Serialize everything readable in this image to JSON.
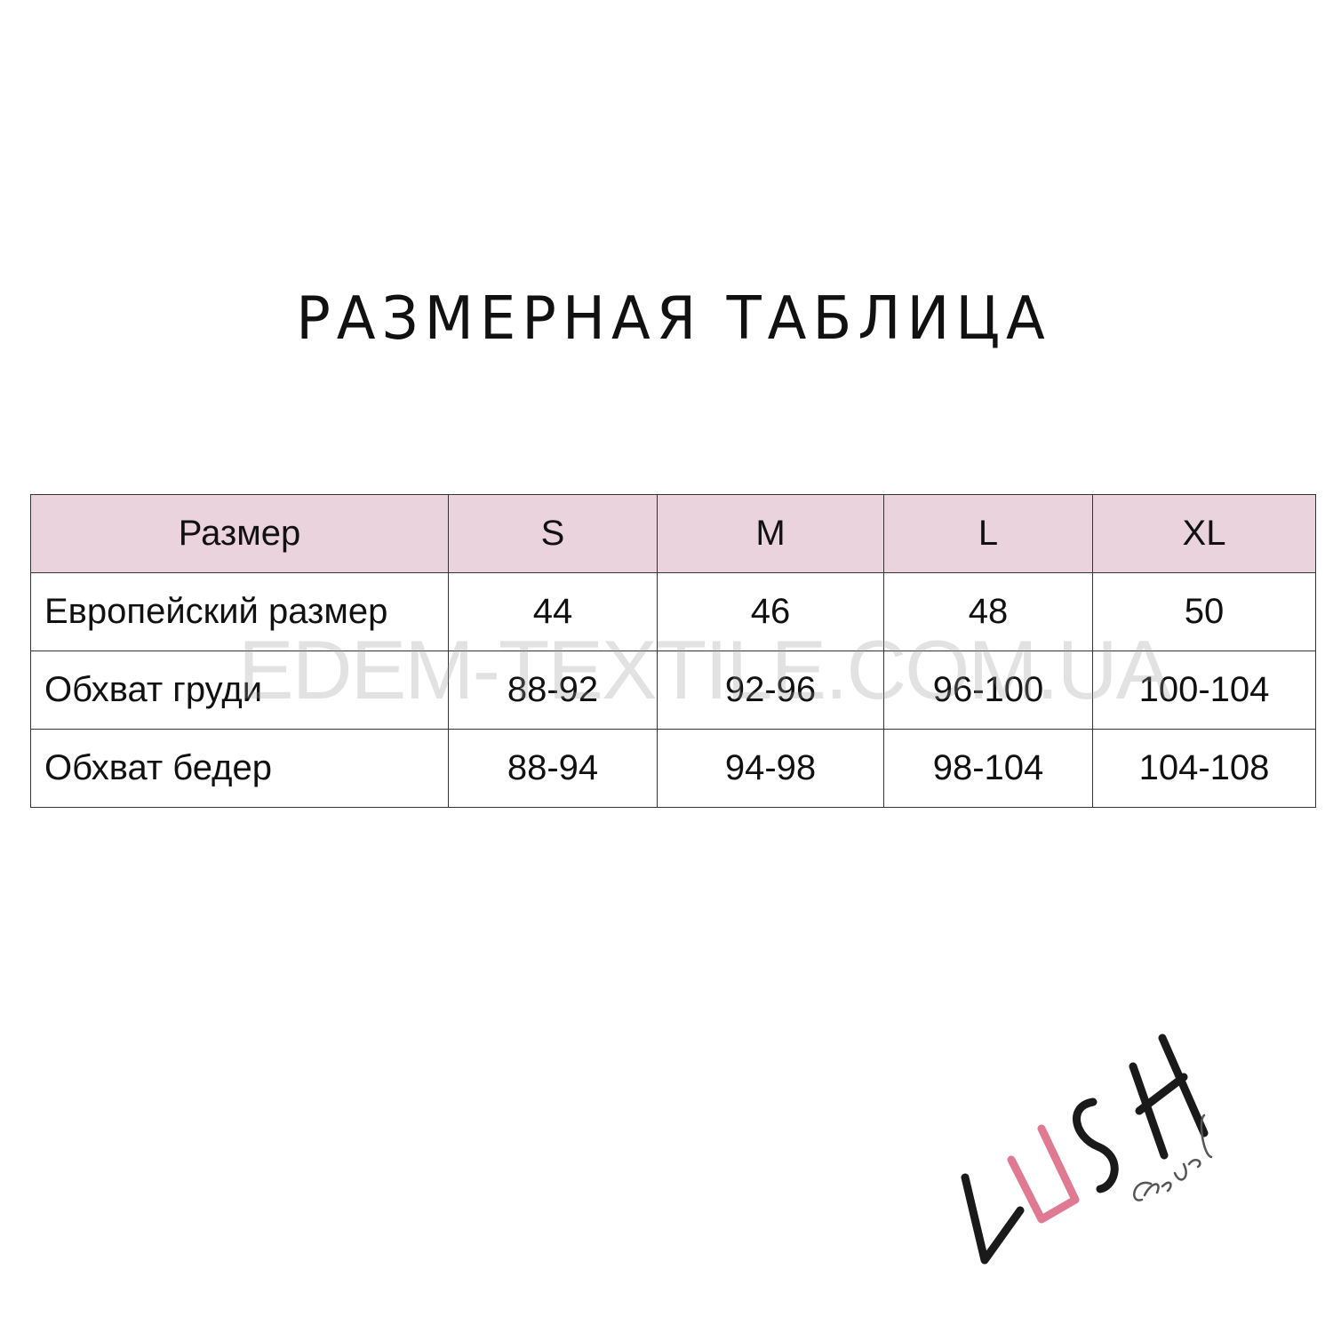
{
  "title": "РАЗМЕРНАЯ ТАБЛИЦА",
  "table": {
    "header": [
      "Размер",
      "S",
      "M",
      "L",
      "XL"
    ],
    "rows": [
      [
        "Европейский размер",
        "44",
        "46",
        "48",
        "50"
      ],
      [
        "Обхват груди",
        "88-92",
        "92-96",
        "96-100",
        "100-104"
      ],
      [
        "Обхват бедер",
        "88-94",
        "94-98",
        "98-104",
        "104-108"
      ]
    ]
  },
  "watermark": "EDEM-TEXTILE.COM.UA",
  "logo": {
    "text": "LUSH casual",
    "colors": {
      "main": "#1a1a1a",
      "accent": "#e07a92"
    }
  },
  "colors": {
    "header_bg": "#ead3dd",
    "border": "#333333"
  }
}
